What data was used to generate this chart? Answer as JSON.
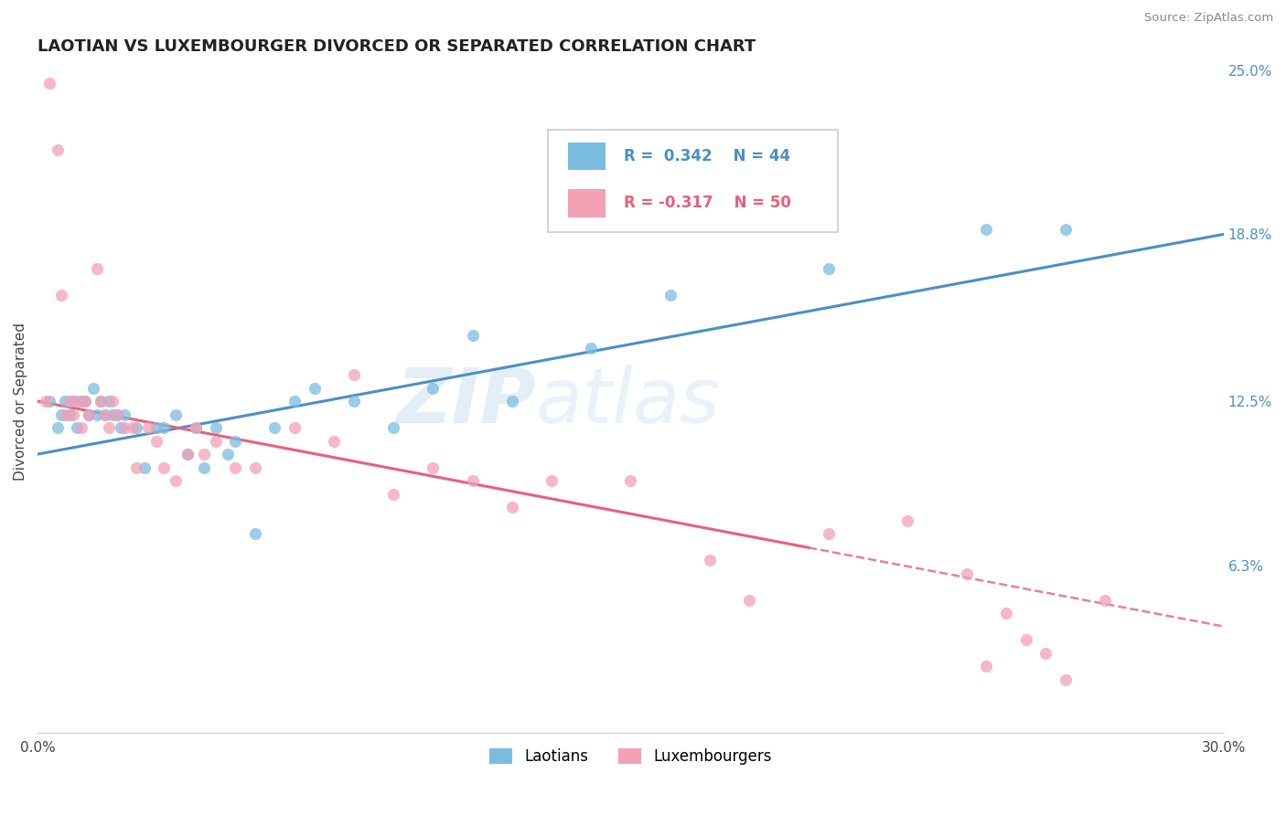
{
  "title": "LAOTIAN VS LUXEMBOURGER DIVORCED OR SEPARATED CORRELATION CHART",
  "source_text": "Source: ZipAtlas.com",
  "ylabel": "Divorced or Separated",
  "legend_label1": "Laotians",
  "legend_label2": "Luxembourgers",
  "R1": 0.342,
  "N1": 44,
  "R2": -0.317,
  "N2": 50,
  "xmin": 0.0,
  "xmax": 0.3,
  "ymin": 0.0,
  "ymax": 0.25,
  "right_yticks": [
    0.063,
    0.125,
    0.188,
    0.25
  ],
  "right_yticklabels": [
    "6.3%",
    "12.5%",
    "18.8%",
    "25.0%"
  ],
  "color_blue": "#7bbde0",
  "color_pink": "#f4a0b5",
  "color_line_blue": "#4a90c4",
  "color_line_pink": "#e8607a",
  "background_color": "#ffffff",
  "grid_color": "#d8d8d8",
  "title_fontsize": 13,
  "lao_line_start_y": 0.105,
  "lao_line_end_y": 0.188,
  "lux_line_start_y": 0.125,
  "lux_line_end_y": 0.04,
  "laotian_x": [
    0.003,
    0.005,
    0.006,
    0.007,
    0.008,
    0.009,
    0.01,
    0.011,
    0.012,
    0.013,
    0.014,
    0.015,
    0.016,
    0.017,
    0.018,
    0.019,
    0.02,
    0.021,
    0.022,
    0.025,
    0.027,
    0.03,
    0.032,
    0.035,
    0.038,
    0.04,
    0.042,
    0.045,
    0.048,
    0.05,
    0.055,
    0.06,
    0.065,
    0.07,
    0.08,
    0.09,
    0.1,
    0.11,
    0.12,
    0.14,
    0.16,
    0.2,
    0.24,
    0.26
  ],
  "laotian_y": [
    0.125,
    0.115,
    0.12,
    0.125,
    0.12,
    0.125,
    0.115,
    0.125,
    0.125,
    0.12,
    0.13,
    0.12,
    0.125,
    0.12,
    0.125,
    0.12,
    0.12,
    0.115,
    0.12,
    0.115,
    0.1,
    0.115,
    0.115,
    0.12,
    0.105,
    0.115,
    0.1,
    0.115,
    0.105,
    0.11,
    0.075,
    0.115,
    0.125,
    0.13,
    0.125,
    0.115,
    0.13,
    0.15,
    0.125,
    0.145,
    0.165,
    0.175,
    0.19,
    0.19
  ],
  "luxembourger_x": [
    0.002,
    0.003,
    0.005,
    0.006,
    0.007,
    0.008,
    0.009,
    0.01,
    0.011,
    0.012,
    0.013,
    0.015,
    0.016,
    0.017,
    0.018,
    0.019,
    0.02,
    0.022,
    0.024,
    0.025,
    0.028,
    0.03,
    0.032,
    0.035,
    0.038,
    0.04,
    0.042,
    0.045,
    0.05,
    0.055,
    0.065,
    0.075,
    0.08,
    0.09,
    0.1,
    0.11,
    0.12,
    0.13,
    0.15,
    0.17,
    0.18,
    0.2,
    0.22,
    0.235,
    0.24,
    0.245,
    0.25,
    0.255,
    0.26,
    0.27
  ],
  "luxembourger_y": [
    0.125,
    0.245,
    0.22,
    0.165,
    0.12,
    0.125,
    0.12,
    0.125,
    0.115,
    0.125,
    0.12,
    0.175,
    0.125,
    0.12,
    0.115,
    0.125,
    0.12,
    0.115,
    0.115,
    0.1,
    0.115,
    0.11,
    0.1,
    0.095,
    0.105,
    0.115,
    0.105,
    0.11,
    0.1,
    0.1,
    0.115,
    0.11,
    0.135,
    0.09,
    0.1,
    0.095,
    0.085,
    0.095,
    0.095,
    0.065,
    0.05,
    0.075,
    0.08,
    0.06,
    0.025,
    0.045,
    0.035,
    0.03,
    0.02,
    0.05
  ]
}
